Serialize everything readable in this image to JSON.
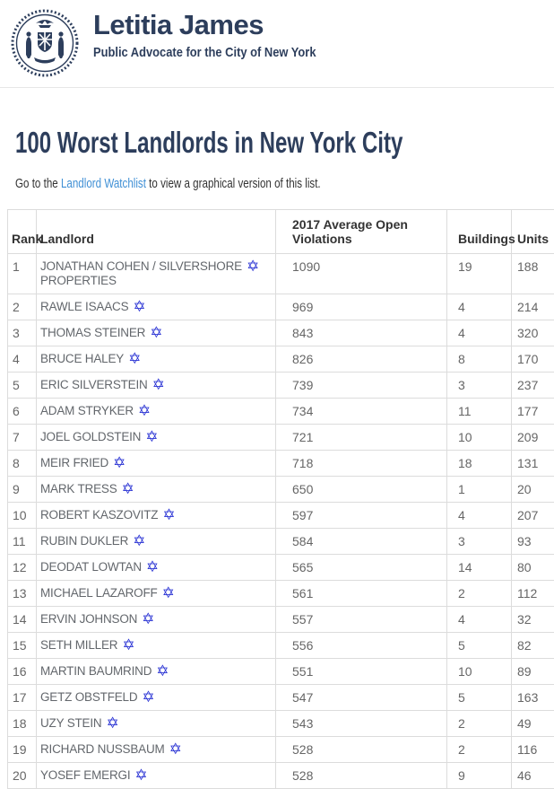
{
  "header": {
    "title": "Letitia James",
    "subtitle": "Public Advocate for the City of New York",
    "seal": "nyc-city-seal"
  },
  "main": {
    "heading": "100 Worst Landlords in New York City",
    "intro_prefix": "Go to the ",
    "intro_link": "Landlord Watchlist",
    "intro_suffix": " to view a graphical version of this list."
  },
  "colors": {
    "navy": "#2d3e5c",
    "link_blue": "#4090d5",
    "star_blue": "#2a33d4",
    "table_border": "#dcdcdc",
    "cell_text": "#666666"
  },
  "icons": {
    "star_of_david": "✡"
  },
  "table": {
    "columns": [
      "Rank",
      "Landlord",
      "2017 Average Open Violations",
      "Buildings",
      "Units"
    ],
    "rows": [
      {
        "rank": "1",
        "name": "JONATHAN COHEN / SILVERSHORE",
        "name_wrap": "PROPERTIES",
        "violations": "1090",
        "buildings": "19",
        "units": "188"
      },
      {
        "rank": "2",
        "name": "RAWLE ISAACS",
        "name_wrap": "",
        "violations": "969",
        "buildings": "4",
        "units": "214"
      },
      {
        "rank": "3",
        "name": "THOMAS STEINER",
        "name_wrap": "",
        "violations": "843",
        "buildings": "4",
        "units": "320"
      },
      {
        "rank": "4",
        "name": "BRUCE HALEY",
        "name_wrap": "",
        "violations": "826",
        "buildings": "8",
        "units": "170"
      },
      {
        "rank": "5",
        "name": "ERIC SILVERSTEIN",
        "name_wrap": "",
        "violations": "739",
        "buildings": "3",
        "units": "237"
      },
      {
        "rank": "6",
        "name": "ADAM STRYKER",
        "name_wrap": "",
        "violations": "734",
        "buildings": "11",
        "units": "177"
      },
      {
        "rank": "7",
        "name": "JOEL GOLDSTEIN",
        "name_wrap": "",
        "violations": "721",
        "buildings": "10",
        "units": "209"
      },
      {
        "rank": "8",
        "name": "MEIR FRIED",
        "name_wrap": "",
        "violations": "718",
        "buildings": "18",
        "units": "131"
      },
      {
        "rank": "9",
        "name": "MARK TRESS",
        "name_wrap": "",
        "violations": "650",
        "buildings": "1",
        "units": "20"
      },
      {
        "rank": "10",
        "name": "ROBERT KASZOVITZ",
        "name_wrap": "",
        "violations": "597",
        "buildings": "4",
        "units": "207"
      },
      {
        "rank": "11",
        "name": "RUBIN DUKLER",
        "name_wrap": "",
        "violations": "584",
        "buildings": "3",
        "units": "93"
      },
      {
        "rank": "12",
        "name": "DEODAT LOWTAN",
        "name_wrap": "",
        "violations": "565",
        "buildings": "14",
        "units": "80"
      },
      {
        "rank": "13",
        "name": "MICHAEL LAZAROFF",
        "name_wrap": "",
        "violations": "561",
        "buildings": "2",
        "units": "112"
      },
      {
        "rank": "14",
        "name": "ERVIN JOHNSON",
        "name_wrap": "",
        "violations": "557",
        "buildings": "4",
        "units": "32"
      },
      {
        "rank": "15",
        "name": "SETH MILLER",
        "name_wrap": "",
        "violations": "556",
        "buildings": "5",
        "units": "82"
      },
      {
        "rank": "16",
        "name": "MARTIN BAUMRIND",
        "name_wrap": "",
        "violations": "551",
        "buildings": "10",
        "units": "89"
      },
      {
        "rank": "17",
        "name": "GETZ OBSTFELD",
        "name_wrap": "",
        "violations": "547",
        "buildings": "5",
        "units": "163"
      },
      {
        "rank": "18",
        "name": "UZY STEIN",
        "name_wrap": "",
        "violations": "543",
        "buildings": "2",
        "units": "49"
      },
      {
        "rank": "19",
        "name": "RICHARD NUSSBAUM",
        "name_wrap": "",
        "violations": "528",
        "buildings": "2",
        "units": "116"
      },
      {
        "rank": "20",
        "name": "YOSEF EMERGI",
        "name_wrap": "",
        "violations": "528",
        "buildings": "9",
        "units": "46"
      }
    ]
  }
}
